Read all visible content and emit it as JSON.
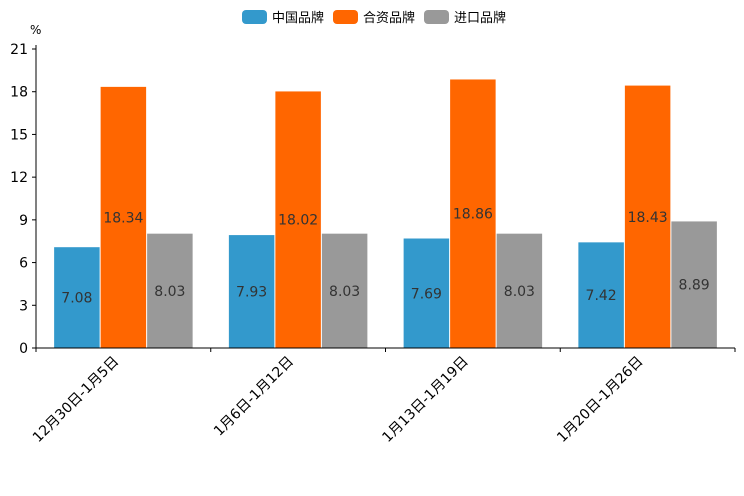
{
  "chart_data": {
    "type": "bar",
    "title": "",
    "xlabel": "",
    "ylabel": "%",
    "ylim": [
      0,
      21
    ],
    "yticks": [
      0,
      3,
      6,
      9,
      12,
      15,
      18,
      21
    ],
    "grid": false,
    "legend_position": "top-center",
    "categories": [
      "12月30日-1月5日",
      "1月6日-1月12日",
      "1月13日-1月19日",
      "1月20日-1月26日"
    ],
    "series": [
      {
        "name": "中国品牌",
        "color": "#3399CC",
        "values": [
          7.08,
          7.93,
          7.69,
          7.42
        ]
      },
      {
        "name": "合资品牌",
        "color": "#FF6600",
        "values": [
          18.34,
          18.02,
          18.86,
          18.43
        ]
      },
      {
        "name": "进口品牌",
        "color": "#999999",
        "values": [
          8.03,
          8.03,
          8.03,
          8.89
        ]
      }
    ]
  }
}
